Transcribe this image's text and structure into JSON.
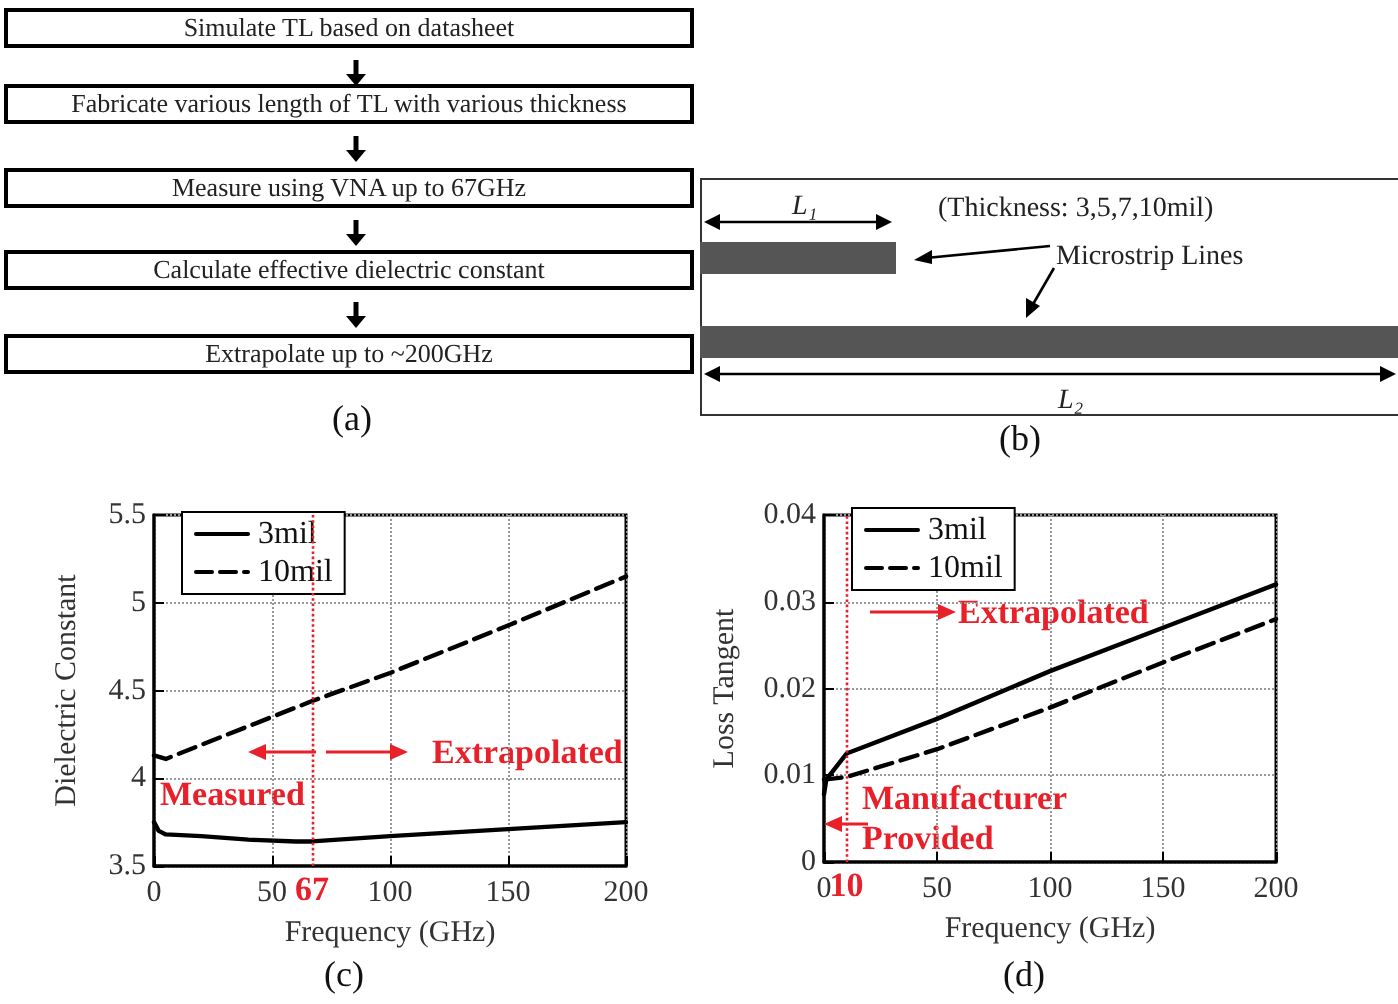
{
  "chart_data": [
    {
      "type": "other",
      "title": "(a)",
      "annotations": [
        "Simulate TL based on datasheet",
        "Fabricate various length of TL with various thickness",
        "Measure using VNA up to 67GHz",
        "Calculate effective dielectric constant",
        "Extrapolate up to ~200GHz"
      ]
    },
    {
      "type": "other",
      "title": "(b)",
      "annotations": [
        "L₁",
        "(Thickness: 3,5,7,10mil)",
        "Microstrip Lines",
        "L₂"
      ]
    },
    {
      "type": "line",
      "title": "(c)",
      "xlabel": "Frequency (GHz)",
      "ylabel": "Dielectric Constant",
      "xlim": [
        0,
        200
      ],
      "xticks": [
        0,
        50,
        100,
        150,
        200
      ],
      "ylim": [
        3.5,
        5.5
      ],
      "yticks": [
        3.5,
        4,
        4.5,
        5,
        5.5
      ],
      "grid": true,
      "legend": "top left",
      "marker": "none",
      "series": [
        {
          "name": "3mil",
          "color": "#000000",
          "line_style": "solid",
          "x": [
            0,
            2,
            5,
            20,
            40,
            60,
            67,
            100,
            150,
            200
          ],
          "values": [
            3.75,
            3.7,
            3.68,
            3.67,
            3.65,
            3.64,
            3.64,
            3.67,
            3.71,
            3.75
          ]
        },
        {
          "name": "10mil",
          "color": "#000000",
          "line_style": "dashed",
          "x": [
            0,
            5,
            67,
            100,
            150,
            200
          ],
          "values": [
            4.13,
            4.11,
            4.44,
            4.6,
            4.87,
            5.15
          ]
        }
      ],
      "ref_lines": [
        {
          "axis": "x",
          "value": 67,
          "label": "67",
          "color": "#e8202a",
          "line_style": "dotted"
        }
      ],
      "annotations": [
        "Measured",
        "Extrapolated"
      ]
    },
    {
      "type": "line",
      "title": "(d)",
      "xlabel": "Frequency (GHz)",
      "ylabel": "Loss Tangent",
      "xlim": [
        0,
        200
      ],
      "xticks": [
        0,
        50,
        100,
        150,
        200
      ],
      "ylim": [
        0,
        0.04
      ],
      "yticks": [
        0,
        0.01,
        0.02,
        0.03,
        0.04
      ],
      "grid": true,
      "legend": "top left",
      "marker": "none",
      "series": [
        {
          "name": "3mil",
          "color": "#000000",
          "line_style": "solid",
          "x": [
            0,
            1,
            10,
            50,
            100,
            150,
            200
          ],
          "values": [
            0.0078,
            0.0095,
            0.0125,
            0.0165,
            0.022,
            0.027,
            0.032
          ]
        },
        {
          "name": "10mil",
          "color": "#000000",
          "line_style": "dashed",
          "x": [
            0,
            10,
            50,
            100,
            150,
            200
          ],
          "values": [
            0.0095,
            0.0098,
            0.013,
            0.0178,
            0.023,
            0.028
          ]
        }
      ],
      "ref_lines": [
        {
          "axis": "x",
          "value": 10,
          "label": "10",
          "color": "#e8202a",
          "line_style": "dotted"
        }
      ],
      "annotations": [
        "Extrapolated",
        "Manufacturer Provided"
      ]
    }
  ]
}
